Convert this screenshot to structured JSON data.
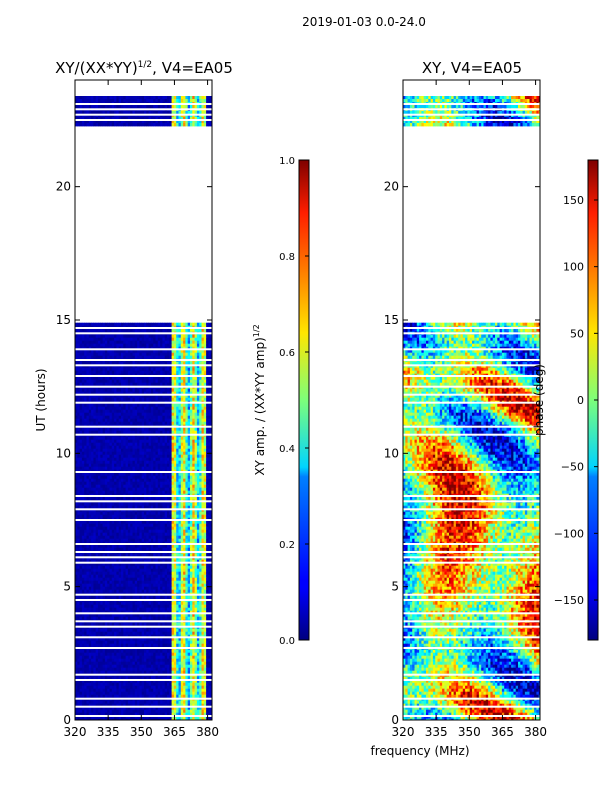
{
  "figure_title": "2019-01-03 0.0-24.0",
  "shared_xlabel": "frequency (MHz)",
  "chart_data": [
    {
      "type": "heatmap",
      "title": "XY/(XX*YY)",
      "title_exponent": "1/2",
      "title_suffix": ", V4=EA05",
      "ylabel": "UT (hours)",
      "xlim": [
        320,
        382
      ],
      "ylim": [
        0,
        24
      ],
      "x_ticks": [
        320,
        335,
        350,
        365,
        380
      ],
      "y_ticks": [
        0,
        5,
        10,
        15,
        20
      ],
      "colorbar": {
        "label": "XY amp. / (XX*YY amp)",
        "label_exponent": "1/2",
        "range": [
          0.0,
          1.0
        ],
        "ticks": [
          "0.0",
          "0.2",
          "0.4",
          "0.6",
          "0.8",
          "1.0"
        ],
        "tick_values": [
          0.0,
          0.2,
          0.4,
          0.6,
          0.8,
          1.0
        ],
        "colormap": "jet"
      },
      "data_intervals_hours": [
        [
          0.0,
          14.9
        ],
        [
          22.3,
          23.4
        ]
      ],
      "gap_lines_hours": [
        0.15,
        0.5,
        0.8,
        1.5,
        1.7,
        2.7,
        3.1,
        3.5,
        3.7,
        4.0,
        4.5,
        4.7,
        5.9,
        6.1,
        6.3,
        6.6,
        7.5,
        7.9,
        8.2,
        8.4,
        9.3,
        10.7,
        11.0,
        11.9,
        12.2,
        12.5,
        12.9,
        13.3,
        13.5,
        13.9,
        14.5,
        14.7,
        22.5,
        22.7,
        22.9,
        23.1
      ],
      "high_value_band_mhz": [
        363,
        379
      ]
    },
    {
      "type": "heatmap",
      "title": "XY, V4=EA05",
      "xlim": [
        320,
        382
      ],
      "ylim": [
        0,
        24
      ],
      "x_ticks": [
        320,
        335,
        350,
        365,
        380
      ],
      "y_ticks": [
        0,
        5,
        10,
        15,
        20
      ],
      "colorbar": {
        "label": "phase (deg)",
        "range": [
          -180,
          180
        ],
        "ticks": [
          "150",
          "100",
          "50",
          "0",
          "−50",
          "−100",
          "−150"
        ],
        "tick_values": [
          150,
          100,
          50,
          0,
          -50,
          -100,
          -150
        ],
        "colormap": "jet"
      },
      "data_intervals_hours": [
        [
          0.0,
          14.9
        ],
        [
          22.3,
          23.4
        ]
      ],
      "gap_lines_hours": [
        0.15,
        0.5,
        0.8,
        1.5,
        1.7,
        2.7,
        3.1,
        3.5,
        3.7,
        4.0,
        4.5,
        4.7,
        5.9,
        6.1,
        6.3,
        6.6,
        7.5,
        7.9,
        8.2,
        8.4,
        9.3,
        10.7,
        11.0,
        11.9,
        12.2,
        12.5,
        12.9,
        13.3,
        13.5,
        13.9,
        14.5,
        14.7,
        22.5,
        22.7,
        22.9,
        23.1
      ]
    }
  ]
}
